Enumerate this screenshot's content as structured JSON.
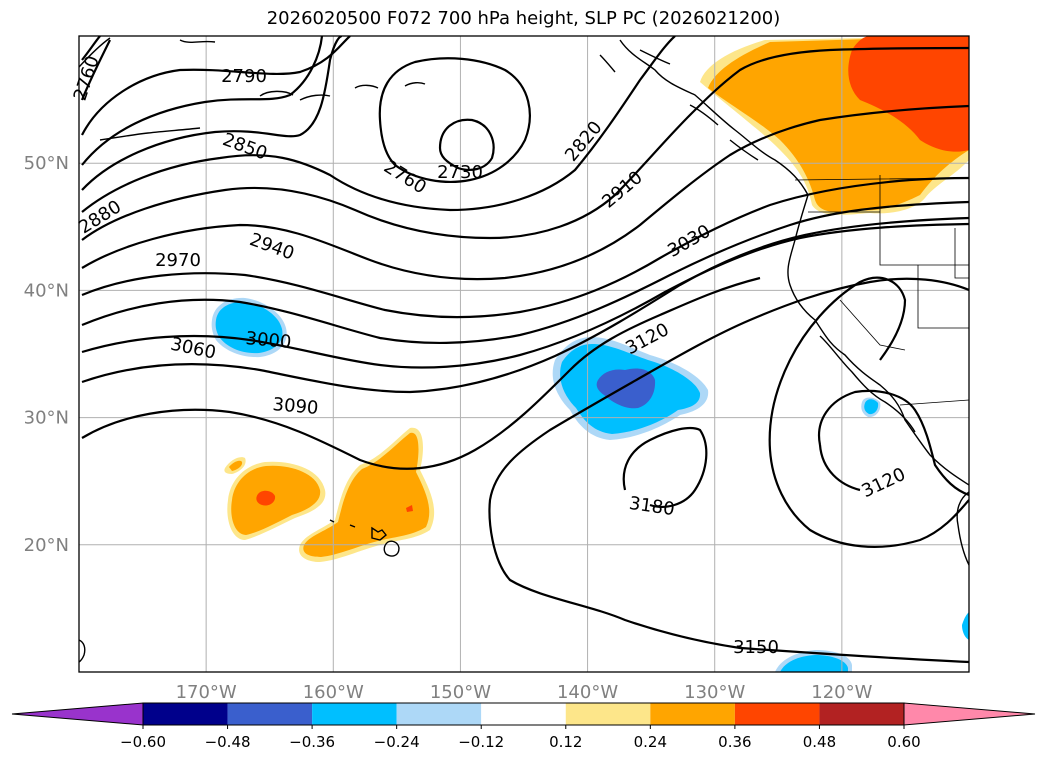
{
  "title": "2026020500 F072 700 hPa height, SLP PC (2026021200)",
  "lon_axis": {
    "labels": [
      "170°W",
      "160°W",
      "150°W",
      "140°W",
      "130°W",
      "120°W"
    ],
    "values": [
      -170,
      -160,
      -150,
      -140,
      -130,
      -120
    ]
  },
  "lat_axis": {
    "labels": [
      "50°N",
      "40°N",
      "30°N",
      "20°N"
    ],
    "values": [
      50,
      40,
      30,
      20
    ]
  },
  "map_extent": {
    "lon_min": -180,
    "lon_max": -110,
    "lat_min": 10,
    "lat_max": 60
  },
  "contour_labels": [
    "2760",
    "2790",
    "2850",
    "2880",
    "2970",
    "2940",
    "3000",
    "3060",
    "3090",
    "2760",
    "2730",
    "2820",
    "2910",
    "3030",
    "3120",
    "3180",
    "3120",
    "3150"
  ],
  "colorbar": {
    "ticks": [
      "−0.60",
      "−0.48",
      "−0.36",
      "−0.24",
      "−0.12",
      "0.12",
      "0.24",
      "0.36",
      "0.48",
      "0.60"
    ],
    "colors": [
      "#9933cc",
      "#00008b",
      "#3a5fcd",
      "#00bfff",
      "#add8f7",
      "#ffffff",
      "#fde68a",
      "#ffa500",
      "#ff4500",
      "#b22222",
      "#ff88aa"
    ]
  }
}
